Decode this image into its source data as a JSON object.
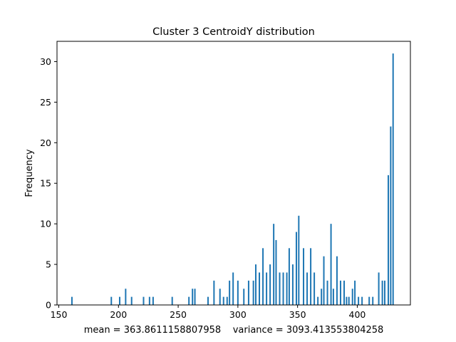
{
  "chart_data": {
    "type": "bar",
    "title": "Cluster 3 CentroidY distribution",
    "xlabel": "mean = 363.8611158807958    variance = 3093.413553804258",
    "ylabel": "Frequency",
    "xlim": [
      148.5,
      444.5
    ],
    "ylim": [
      0,
      32.5
    ],
    "xticks": [
      150,
      200,
      250,
      300,
      350,
      400
    ],
    "yticks": [
      0,
      5,
      10,
      15,
      20,
      25,
      30
    ],
    "bar_color": "#1f77b4",
    "bar_width": 1.2,
    "grid": false,
    "legend": "none",
    "x": [
      161,
      194,
      201,
      206,
      211,
      221,
      226,
      229,
      245,
      259,
      262,
      264,
      275,
      280,
      285,
      288,
      291,
      293,
      296,
      300,
      305,
      309,
      313,
      315,
      318,
      321,
      324,
      327,
      330,
      332,
      335,
      338,
      341,
      343,
      346,
      349,
      351,
      355,
      358,
      361,
      364,
      367,
      370,
      372,
      375,
      378,
      380,
      383,
      386,
      389,
      391,
      393,
      396,
      398,
      401,
      404,
      410,
      413,
      418,
      421,
      423,
      426,
      428,
      430,
      433
    ],
    "values": [
      1,
      1,
      1,
      2,
      1,
      1,
      1,
      1,
      1,
      1,
      2,
      2,
      1,
      3,
      2,
      1,
      1,
      3,
      4,
      3,
      2,
      3,
      3,
      5,
      4,
      7,
      4,
      5,
      10,
      8,
      4,
      4,
      4,
      7,
      5,
      9,
      11,
      7,
      4,
      7,
      4,
      1,
      2,
      6,
      3,
      10,
      2,
      6,
      3,
      3,
      1,
      1,
      2,
      3,
      1,
      1,
      1,
      1,
      4,
      3,
      3,
      16,
      22,
      31,
      0
    ]
  }
}
